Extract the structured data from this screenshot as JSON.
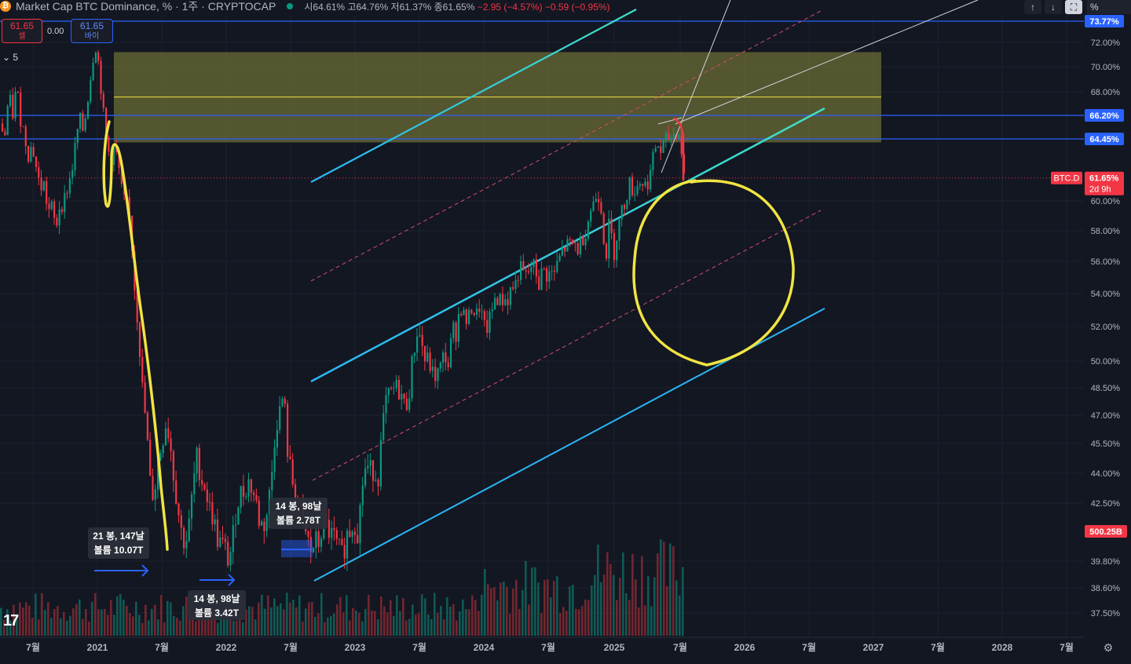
{
  "header": {
    "title": "Market Cap BTC Dominance, % · 1주 · CRYPTOCAP",
    "ohlc_open": "시64.61%",
    "ohlc_high": "고64.76%",
    "ohlc_low": "저61.37%",
    "ohlc_close": "종61.65%",
    "change": "−2.95 (−4.57%)",
    "change2": "−0.59 (−0.95%)"
  },
  "trade": {
    "sell_price": "61.65",
    "sell_label": "셀",
    "spread": "0.00",
    "buy_price": "61.65",
    "buy_label": "바이"
  },
  "indicator_count": "5",
  "toolbar": {
    "up_icon": "↑",
    "down_icon": "↓",
    "scale_unit": "%"
  },
  "chart_data": {
    "type": "candlestick",
    "symbol_tag": "BTC.D",
    "last_value": "61.65%",
    "countdown": "2d 9h",
    "volume_label": "500.25B",
    "y_ticks": [
      "72.00%",
      "70.00%",
      "68.00%",
      "66.20%",
      "64.45%",
      "60.00%",
      "58.00%",
      "56.00%",
      "54.00%",
      "52.00%",
      "50.00%",
      "48.50%",
      "47.00%",
      "45.50%",
      "44.00%",
      "42.50%",
      "39.80%",
      "38.60%",
      "37.50%"
    ],
    "top_label": "73.77%",
    "x_ticks": [
      "7월",
      "2021",
      "7월",
      "2022",
      "7월",
      "2023",
      "7월",
      "2024",
      "7월",
      "2025",
      "7월",
      "2026",
      "7월",
      "2027",
      "7월",
      "2028",
      "7월"
    ],
    "horizontal_levels": [
      {
        "value": 73.77,
        "color": "#2962ff"
      },
      {
        "value": 66.2,
        "color": "#2962ff"
      },
      {
        "value": 64.45,
        "color": "#2962ff"
      }
    ],
    "zone": {
      "from": 64.2,
      "to": 71.2,
      "mid": 67.6,
      "color": "#8b8b3a"
    },
    "annotations": [
      {
        "line1": "21 봉, 147날",
        "line2": "볼륨 10.07T"
      },
      {
        "line1": "14 봉, 98날",
        "line2": "볼륨 3.42T"
      },
      {
        "line1": "14 봉, 98날",
        "line2": "볼륨 2.78T"
      }
    ],
    "candle_path": [
      [
        0,
        65.6
      ],
      [
        5,
        64.6
      ],
      [
        10,
        67.8
      ],
      [
        15,
        66.2
      ],
      [
        20,
        68.4
      ],
      [
        25,
        66.0
      ],
      [
        30,
        64.8
      ],
      [
        35,
        63.4
      ],
      [
        40,
        64.0
      ],
      [
        45,
        62.4
      ],
      [
        50,
        60.9
      ],
      [
        55,
        61.2
      ],
      [
        60,
        59.3
      ],
      [
        65,
        59.5
      ],
      [
        70,
        58.1
      ],
      [
        75,
        59.8
      ],
      [
        80,
        59.9
      ],
      [
        85,
        61.0
      ],
      [
        90,
        62.0
      ],
      [
        95,
        64.0
      ],
      [
        100,
        66.0
      ],
      [
        105,
        65.0
      ],
      [
        110,
        67.2
      ],
      [
        115,
        69.6
      ],
      [
        120,
        72.0
      ],
      [
        125,
        70.0
      ],
      [
        130,
        66.6
      ],
      [
        135,
        63.9
      ],
      [
        140,
        63.0
      ],
      [
        145,
        63.9
      ],
      [
        150,
        62.4
      ],
      [
        155,
        60.2
      ],
      [
        160,
        59.8
      ],
      [
        165,
        58.5
      ],
      [
        170,
        54.6
      ],
      [
        175,
        52.0
      ],
      [
        180,
        48.5
      ],
      [
        185,
        46.5
      ],
      [
        190,
        43.5
      ],
      [
        195,
        42.8
      ],
      [
        200,
        44.6
      ],
      [
        205,
        45.5
      ],
      [
        210,
        46.6
      ],
      [
        215,
        45.8
      ],
      [
        220,
        43.9
      ],
      [
        225,
        42.4
      ],
      [
        230,
        41.1
      ],
      [
        235,
        40.6
      ],
      [
        240,
        41.5
      ],
      [
        245,
        43.5
      ],
      [
        250,
        44.9
      ],
      [
        255,
        43.7
      ],
      [
        260,
        43.4
      ],
      [
        265,
        42.3
      ],
      [
        270,
        41.9
      ],
      [
        275,
        40.9
      ],
      [
        280,
        40.6
      ],
      [
        285,
        40.4
      ],
      [
        290,
        39.8
      ],
      [
        295,
        40.7
      ],
      [
        300,
        42.4
      ],
      [
        305,
        43.0
      ],
      [
        310,
        43.1
      ],
      [
        315,
        43.6
      ],
      [
        320,
        43.2
      ],
      [
        325,
        42.5
      ],
      [
        330,
        41.5
      ],
      [
        335,
        41.5
      ],
      [
        340,
        42.2
      ],
      [
        345,
        44.0
      ],
      [
        350,
        46.5
      ],
      [
        355,
        47.2
      ],
      [
        360,
        48.2
      ],
      [
        365,
        45.2
      ],
      [
        370,
        43.7
      ],
      [
        375,
        43.2
      ],
      [
        380,
        42.4
      ],
      [
        385,
        41.3
      ],
      [
        390,
        40.9
      ],
      [
        395,
        40.2
      ],
      [
        400,
        40.7
      ],
      [
        405,
        40.6
      ],
      [
        410,
        41.6
      ],
      [
        415,
        41.4
      ],
      [
        420,
        41.0
      ],
      [
        425,
        40.8
      ],
      [
        430,
        40.3
      ],
      [
        435,
        40.0
      ],
      [
        440,
        41.0
      ],
      [
        445,
        41.3
      ],
      [
        450,
        41.7
      ],
      [
        455,
        41.1
      ],
      [
        460,
        43.4
      ],
      [
        465,
        44.4
      ],
      [
        470,
        44.1
      ],
      [
        475,
        44.2
      ],
      [
        480,
        43.7
      ],
      [
        485,
        45.9
      ],
      [
        490,
        47.7
      ],
      [
        495,
        48.0
      ],
      [
        500,
        48.4
      ],
      [
        505,
        48.5
      ],
      [
        510,
        48.1
      ],
      [
        515,
        47.3
      ],
      [
        520,
        48.4
      ],
      [
        525,
        50.4
      ],
      [
        530,
        51.7
      ],
      [
        535,
        51.3
      ],
      [
        540,
        50.0
      ],
      [
        545,
        50.0
      ],
      [
        550,
        49.2
      ],
      [
        555,
        49.2
      ],
      [
        560,
        49.6
      ],
      [
        565,
        50.5
      ],
      [
        570,
        49.7
      ],
      [
        575,
        51.8
      ],
      [
        580,
        51.7
      ],
      [
        585,
        53.4
      ],
      [
        590,
        52.5
      ],
      [
        595,
        52.2
      ],
      [
        600,
        53.4
      ],
      [
        605,
        52.5
      ],
      [
        610,
        53.4
      ],
      [
        615,
        51.8
      ],
      [
        620,
        52.0
      ],
      [
        625,
        52.8
      ],
      [
        630,
        54.0
      ],
      [
        635,
        53.5
      ],
      [
        640,
        53.7
      ],
      [
        645,
        53.6
      ],
      [
        650,
        54.4
      ],
      [
        655,
        54.5
      ],
      [
        660,
        55.6
      ],
      [
        665,
        55.2
      ],
      [
        670,
        55.0
      ],
      [
        675,
        55.7
      ],
      [
        680,
        55.6
      ],
      [
        685,
        54.6
      ],
      [
        690,
        55.5
      ],
      [
        695,
        55.2
      ],
      [
        700,
        55.2
      ],
      [
        705,
        55.3
      ],
      [
        710,
        56.0
      ],
      [
        715,
        56.7
      ],
      [
        720,
        57.0
      ],
      [
        725,
        57.0
      ],
      [
        730,
        57.2
      ],
      [
        735,
        56.8
      ],
      [
        740,
        57.5
      ],
      [
        745,
        58.1
      ],
      [
        750,
        59.3
      ],
      [
        755,
        59.9
      ],
      [
        760,
        60.7
      ],
      [
        765,
        59.4
      ],
      [
        770,
        56.1
      ],
      [
        775,
        58.7
      ],
      [
        780,
        56.4
      ],
      [
        785,
        58.0
      ],
      [
        790,
        59.2
      ],
      [
        795,
        60.0
      ],
      [
        800,
        61.3
      ],
      [
        805,
        60.7
      ],
      [
        810,
        61.1
      ],
      [
        815,
        61.5
      ],
      [
        820,
        61.1
      ],
      [
        825,
        61.5
      ],
      [
        830,
        62.9
      ],
      [
        835,
        64.3
      ],
      [
        840,
        63.5
      ],
      [
        845,
        64.2
      ],
      [
        850,
        64.5
      ],
      [
        855,
        64.7
      ],
      [
        860,
        65.0
      ],
      [
        865,
        64.6
      ],
      [
        870,
        61.65
      ]
    ]
  }
}
